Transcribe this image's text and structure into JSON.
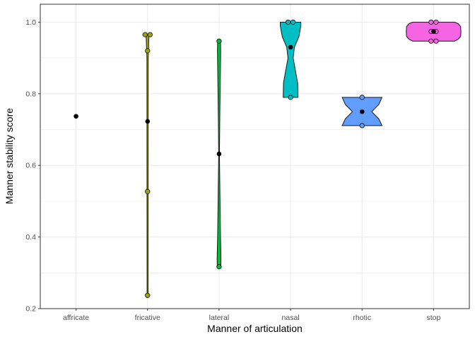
{
  "chart_data": {
    "type": "violin",
    "title": "",
    "xlabel": "Manner of articulation",
    "ylabel": "Manner stability score",
    "ylim": [
      0.2,
      1.05
    ],
    "y_ticks": [
      0.2,
      0.4,
      0.6,
      0.8,
      1.0
    ],
    "y_tick_labels": [
      "0.2",
      "0.4",
      "0.6",
      "0.8",
      "1.0"
    ],
    "grid": true,
    "legend": "none",
    "categories": [
      "affricate",
      "fricative",
      "lateral",
      "nasal",
      "rhotic",
      "stop"
    ],
    "colors": [
      "#F8766D",
      "#A3A500",
      "#00BA38",
      "#00BFC4",
      "#619CFF",
      "#F564E3"
    ],
    "series": [
      {
        "category": "affricate",
        "points": [],
        "mean": 0.737,
        "violin": null
      },
      {
        "category": "fricative",
        "points": [
          0.965,
          0.965,
          0.92,
          0.527,
          0.237
        ],
        "mean": 0.723,
        "violin": {
          "ymin": 0.237,
          "ymax": 0.965,
          "profile": [
            [
              0.237,
              0.015
            ],
            [
              0.4,
              0.016
            ],
            [
              0.6,
              0.018
            ],
            [
              0.8,
              0.019
            ],
            [
              0.9,
              0.02
            ],
            [
              0.965,
              0.045
            ]
          ]
        }
      },
      {
        "category": "lateral",
        "points": [
          0.947,
          0.317
        ],
        "mean": 0.632,
        "violin": {
          "ymin": 0.317,
          "ymax": 0.947,
          "profile": [
            [
              0.317,
              0.055
            ],
            [
              0.34,
              0.06
            ],
            [
              0.4,
              0.045
            ],
            [
              0.5,
              0.03
            ],
            [
              0.632,
              0.012
            ],
            [
              0.75,
              0.025
            ],
            [
              0.85,
              0.04
            ],
            [
              0.92,
              0.05
            ],
            [
              0.947,
              0.045
            ]
          ]
        }
      },
      {
        "category": "nasal",
        "points": [
          1.0,
          1.0,
          0.79
        ],
        "mean": 0.93,
        "violin": {
          "ymin": 0.79,
          "ymax": 1.0,
          "profile": [
            [
              0.79,
              0.23
            ],
            [
              0.83,
              0.22
            ],
            [
              0.87,
              0.14
            ],
            [
              0.9,
              0.08
            ],
            [
              0.93,
              0.12
            ],
            [
              0.96,
              0.26
            ],
            [
              0.99,
              0.32
            ],
            [
              1.0,
              0.32
            ]
          ]
        }
      },
      {
        "category": "rhotic",
        "points": [
          0.79,
          0.711
        ],
        "mean": 0.75,
        "violin": {
          "ymin": 0.711,
          "ymax": 0.79,
          "profile": [
            [
              0.711,
              0.62
            ],
            [
              0.73,
              0.52
            ],
            [
              0.75,
              0.3
            ],
            [
              0.77,
              0.52
            ],
            [
              0.79,
              0.62
            ]
          ]
        }
      },
      {
        "category": "stop",
        "points": [
          1.0,
          1.0,
          0.974,
          0.974,
          0.947,
          0.947
        ],
        "mean": 0.974,
        "violin": {
          "ymin": 0.947,
          "ymax": 1.0,
          "profile": [
            [
              0.947,
              0.65
            ],
            [
              0.952,
              0.76
            ],
            [
              0.96,
              0.84
            ],
            [
              0.974,
              0.85
            ],
            [
              0.988,
              0.84
            ],
            [
              0.996,
              0.76
            ],
            [
              1.0,
              0.65
            ]
          ]
        }
      }
    ]
  }
}
